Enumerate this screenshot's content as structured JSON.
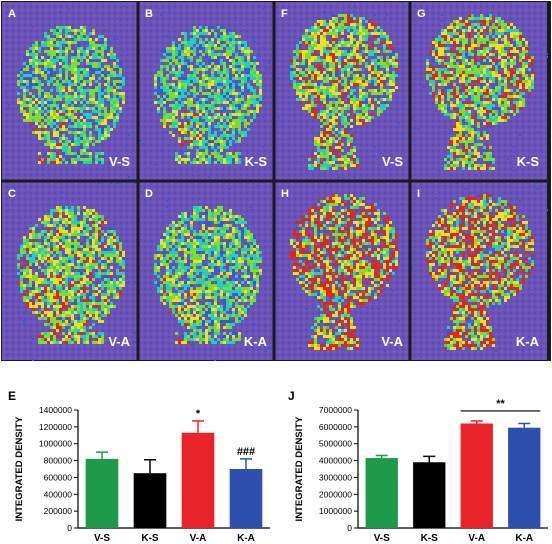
{
  "colors": {
    "micrograph_background": "#6a52b8",
    "heat_low": "#3a55d8",
    "heat_mid": "#1fd0c0",
    "heat_high_green": "#7ede2a",
    "heat_yellow": "#f0e020",
    "heat_red": "#ee2010",
    "bar_V_S": "#1f9a4a",
    "bar_K_S": "#000000",
    "bar_V_A": "#e8242a",
    "bar_K_A": "#2f4fae"
  },
  "panels": [
    {
      "letter": "A",
      "label": "V-S",
      "shape": "small-section",
      "intensity": 0.25
    },
    {
      "letter": "B",
      "label": "K-S",
      "shape": "small-section",
      "intensity": 0.25
    },
    {
      "letter": "F",
      "label": "V-S",
      "shape": "heart-section",
      "intensity": 0.55
    },
    {
      "letter": "G",
      "label": "K-S",
      "shape": "heart-section",
      "intensity": 0.6
    },
    {
      "letter": "C",
      "label": "V-A",
      "shape": "small-section",
      "intensity": 0.45
    },
    {
      "letter": "D",
      "label": "K-A",
      "shape": "small-section",
      "intensity": 0.3
    },
    {
      "letter": "H",
      "label": "V-A",
      "shape": "heart-section",
      "intensity": 0.85
    },
    {
      "letter": "I",
      "label": "K-A",
      "shape": "heart-section",
      "intensity": 0.8
    }
  ],
  "chart_data": [
    {
      "letter": "E",
      "type": "bar",
      "ylabel": "INTEGRATED DENSITY",
      "ylim": [
        0,
        1400000
      ],
      "yticks": [
        "0",
        "200000",
        "400000",
        "600000",
        "800000",
        "1000000",
        "1200000",
        "1400000"
      ],
      "categories": [
        "V-S",
        "K-S",
        "V-A",
        "K-A"
      ],
      "values": [
        820000,
        650000,
        1130000,
        700000
      ],
      "errors": [
        80000,
        160000,
        140000,
        120000
      ],
      "annotations": [
        "",
        "",
        "*",
        "###"
      ]
    },
    {
      "letter": "J",
      "type": "bar",
      "ylabel": "INTEGRATED DENSITY",
      "ylim": [
        0,
        7000000
      ],
      "yticks": [
        "0",
        "1000000",
        "2000000",
        "3000000",
        "4000000",
        "5000000",
        "6000000",
        "7000000"
      ],
      "categories": [
        "V-S",
        "K-S",
        "V-A",
        "K-A"
      ],
      "values": [
        4150000,
        3900000,
        6200000,
        5950000
      ],
      "errors": [
        150000,
        350000,
        150000,
        250000
      ],
      "annotations": [
        "",
        "",
        "",
        ""
      ],
      "bracket": {
        "from": 2,
        "to": 3,
        "label": "**"
      }
    }
  ]
}
